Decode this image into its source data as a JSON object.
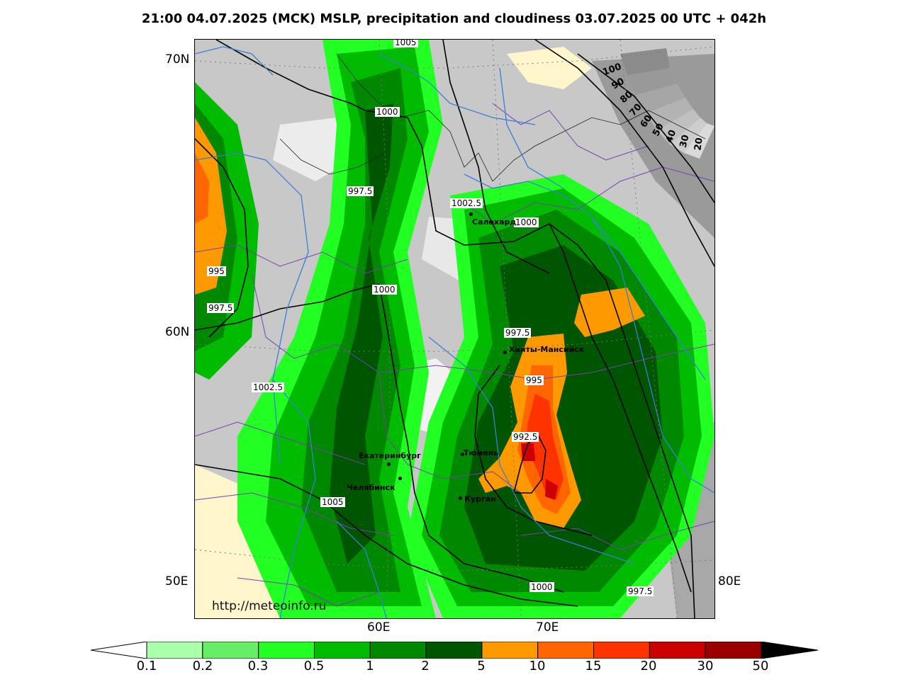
{
  "title": "21:00 04.07.2025 (MCK) MSLP, precipitation and cloudiness 03.07.2025 00 UTC + 042h",
  "axes": {
    "lat_70": "70N",
    "lat_60": "60N",
    "lon_50": "50E",
    "lon_60": "60E",
    "lon_70": "70E",
    "lon_80": "80E"
  },
  "isobars": {
    "a": "1005",
    "b": "1000",
    "c": "997.5",
    "d": "1002.5",
    "e": "1000",
    "f": "995",
    "g": "997.5",
    "h": "1000",
    "i": "997.5",
    "j": "995",
    "k": "1002.5",
    "l": "992.5",
    "m": "1005",
    "n": "1000",
    "o": "997.5"
  },
  "cities": {
    "salekhard": "Салехард",
    "khanty": "Ханты-Мансийск",
    "yekaterinburg": "Екатеринбург",
    "tyumen": "Тюмень",
    "chelyabinsk": "Челябинск",
    "kurgan": "Курган"
  },
  "cloud_scale": [
    "100",
    "90",
    "80",
    "70",
    "60",
    "50",
    "40",
    "30",
    "20"
  ],
  "credit": "http://meteoinfo.ru",
  "colorbar": {
    "ticks": [
      "0.1",
      "0.2",
      "0.3",
      "0.5",
      "1",
      "2",
      "5",
      "10",
      "15",
      "20",
      "30",
      "50"
    ],
    "colors": [
      "#aaffaa",
      "#66ee66",
      "#22ff22",
      "#00bb00",
      "#008800",
      "#005500",
      "#ff9900",
      "#ff6600",
      "#ff3300",
      "#cc0000",
      "#990000"
    ]
  }
}
